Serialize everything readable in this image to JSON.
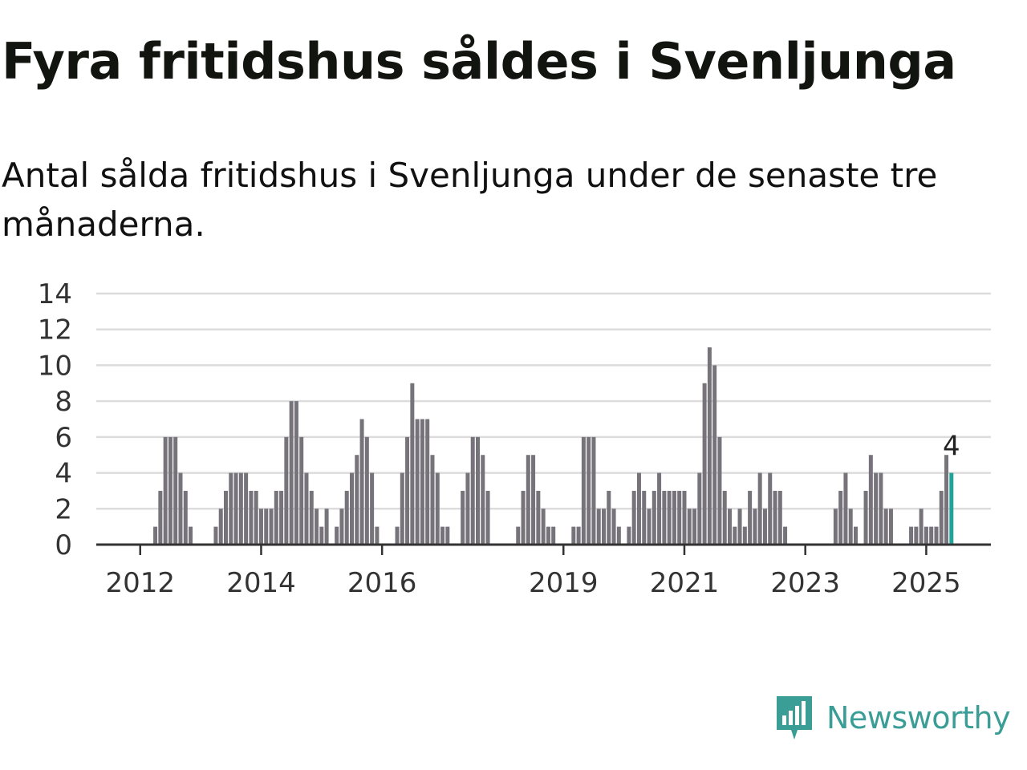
{
  "title": "Fyra fritidshus såldes i Svenljunga",
  "subtitle": "Antal sålda fritidshus i Svenljunga under de senaste tre månaderna.",
  "brand": {
    "name": "Newsworthy",
    "color": "#3a9e96",
    "icon": "newsworthy-logo-icon"
  },
  "colors": {
    "bar": "#76737a",
    "highlight": "#22a39a",
    "grid": "#dcdcdc",
    "axis": "#333333"
  },
  "chart_data": {
    "type": "bar",
    "ylim": [
      0,
      14
    ],
    "yticks": [
      0,
      2,
      4,
      6,
      8,
      10,
      12,
      14
    ],
    "xticks": [
      {
        "label": "2012",
        "month": 8
      },
      {
        "label": "2014",
        "month": 32
      },
      {
        "label": "2016",
        "month": 56
      },
      {
        "label": "2019",
        "month": 92
      },
      {
        "label": "2021",
        "month": 116
      },
      {
        "label": "2023",
        "month": 140
      },
      {
        "label": "2025",
        "month": 164
      }
    ],
    "values": [
      0,
      0,
      0,
      0,
      0,
      0,
      0,
      0,
      0,
      0,
      0,
      1,
      3,
      6,
      6,
      6,
      4,
      3,
      1,
      0,
      0,
      0,
      0,
      1,
      2,
      3,
      4,
      4,
      4,
      4,
      3,
      3,
      2,
      2,
      2,
      3,
      3,
      6,
      8,
      8,
      6,
      4,
      3,
      2,
      1,
      2,
      0,
      1,
      2,
      3,
      4,
      5,
      7,
      6,
      4,
      1,
      0,
      0,
      0,
      1,
      4,
      6,
      9,
      7,
      7,
      7,
      5,
      4,
      1,
      1,
      0,
      0,
      3,
      4,
      6,
      6,
      5,
      3,
      0,
      0,
      0,
      0,
      0,
      1,
      3,
      5,
      5,
      3,
      2,
      1,
      1,
      0,
      0,
      0,
      1,
      1,
      6,
      6,
      6,
      2,
      2,
      3,
      2,
      1,
      0,
      1,
      3,
      4,
      3,
      2,
      3,
      4,
      3,
      3,
      3,
      3,
      3,
      2,
      2,
      4,
      9,
      11,
      10,
      6,
      3,
      2,
      1,
      2,
      1,
      3,
      2,
      4,
      2,
      4,
      3,
      3,
      1,
      0,
      0,
      0,
      0,
      0,
      0,
      0,
      0,
      0,
      2,
      3,
      4,
      2,
      1,
      0,
      3,
      5,
      4,
      4,
      2,
      2,
      0,
      0,
      0,
      1,
      1,
      2,
      1,
      1,
      1,
      3,
      5,
      4
    ],
    "highlight_label": "4"
  }
}
